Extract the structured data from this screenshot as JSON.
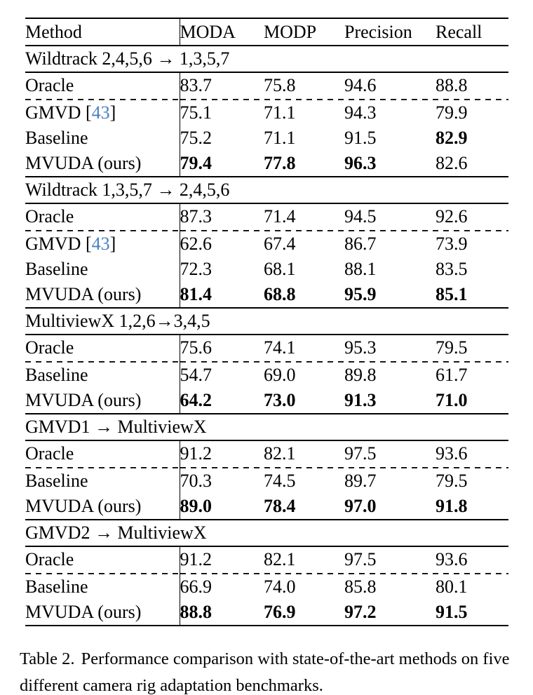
{
  "table": {
    "header": {
      "method": "Method",
      "metrics": [
        "MODA",
        "MODP",
        "Precision",
        "Recall"
      ]
    },
    "sections": [
      {
        "title": "Wildtrack 2,4,5,6 → 1,3,5,7",
        "rows": [
          {
            "method": "Oracle",
            "dashed_below": true,
            "values": [
              {
                "v": "83.7"
              },
              {
                "v": "75.8"
              },
              {
                "v": "94.6"
              },
              {
                "v": "88.8"
              }
            ]
          },
          {
            "method": "GMVD",
            "cite": "43",
            "values": [
              {
                "v": "75.1"
              },
              {
                "v": "71.1"
              },
              {
                "v": "94.3"
              },
              {
                "v": "79.9"
              }
            ]
          },
          {
            "method": "Baseline",
            "values": [
              {
                "v": "75.2"
              },
              {
                "v": "71.1"
              },
              {
                "v": "91.5"
              },
              {
                "v": "82.9",
                "bold": true
              }
            ]
          },
          {
            "method": "MVUDA (ours)",
            "values": [
              {
                "v": "79.4",
                "bold": true
              },
              {
                "v": "77.8",
                "bold": true
              },
              {
                "v": "96.3",
                "bold": true
              },
              {
                "v": "82.6"
              }
            ]
          }
        ]
      },
      {
        "title": "Wildtrack 1,3,5,7 → 2,4,5,6",
        "rows": [
          {
            "method": "Oracle",
            "dashed_below": true,
            "values": [
              {
                "v": "87.3"
              },
              {
                "v": "71.4"
              },
              {
                "v": "94.5"
              },
              {
                "v": "92.6"
              }
            ]
          },
          {
            "method": "GMVD",
            "cite": "43",
            "values": [
              {
                "v": "62.6"
              },
              {
                "v": "67.4"
              },
              {
                "v": "86.7"
              },
              {
                "v": "73.9"
              }
            ]
          },
          {
            "method": "Baseline",
            "values": [
              {
                "v": "72.3"
              },
              {
                "v": "68.1"
              },
              {
                "v": "88.1"
              },
              {
                "v": "83.5"
              }
            ]
          },
          {
            "method": "MVUDA (ours)",
            "values": [
              {
                "v": "81.4",
                "bold": true
              },
              {
                "v": "68.8",
                "bold": true
              },
              {
                "v": "95.9",
                "bold": true
              },
              {
                "v": "85.1",
                "bold": true
              }
            ]
          }
        ]
      },
      {
        "title": "MultiviewX 1,2,6→3,4,5",
        "rows": [
          {
            "method": "Oracle",
            "dashed_below": true,
            "values": [
              {
                "v": "75.6"
              },
              {
                "v": "74.1"
              },
              {
                "v": "95.3"
              },
              {
                "v": "79.5"
              }
            ]
          },
          {
            "method": "Baseline",
            "values": [
              {
                "v": "54.7"
              },
              {
                "v": "69.0"
              },
              {
                "v": "89.8"
              },
              {
                "v": "61.7"
              }
            ]
          },
          {
            "method": "MVUDA (ours)",
            "values": [
              {
                "v": "64.2",
                "bold": true
              },
              {
                "v": "73.0",
                "bold": true
              },
              {
                "v": "91.3",
                "bold": true
              },
              {
                "v": "71.0",
                "bold": true
              }
            ]
          }
        ]
      },
      {
        "title": "GMVD1 → MultiviewX",
        "rows": [
          {
            "method": "Oracle",
            "dashed_below": true,
            "values": [
              {
                "v": "91.2"
              },
              {
                "v": "82.1"
              },
              {
                "v": "97.5"
              },
              {
                "v": "93.6"
              }
            ]
          },
          {
            "method": "Baseline",
            "values": [
              {
                "v": "70.3"
              },
              {
                "v": "74.5"
              },
              {
                "v": "89.7"
              },
              {
                "v": "79.5"
              }
            ]
          },
          {
            "method": "MVUDA (ours)",
            "values": [
              {
                "v": "89.0",
                "bold": true
              },
              {
                "v": "78.4",
                "bold": true
              },
              {
                "v": "97.0",
                "bold": true
              },
              {
                "v": "91.8",
                "bold": true
              }
            ]
          }
        ]
      },
      {
        "title": "GMVD2 → MultiviewX",
        "rows": [
          {
            "method": "Oracle",
            "dashed_below": true,
            "values": [
              {
                "v": "91.2"
              },
              {
                "v": "82.1"
              },
              {
                "v": "97.5"
              },
              {
                "v": "93.6"
              }
            ]
          },
          {
            "method": "Baseline",
            "values": [
              {
                "v": "66.9"
              },
              {
                "v": "74.0"
              },
              {
                "v": "85.8"
              },
              {
                "v": "80.1"
              }
            ]
          },
          {
            "method": "MVUDA (ours)",
            "values": [
              {
                "v": "88.8",
                "bold": true
              },
              {
                "v": "76.9",
                "bold": true
              },
              {
                "v": "97.2",
                "bold": true
              },
              {
                "v": "91.5",
                "bold": true
              }
            ]
          }
        ]
      }
    ]
  },
  "caption": {
    "label": "Table 2.",
    "text": "Performance comparison with state-of-the-art methods on five different camera rig adaptation benchmarks."
  },
  "colors": {
    "citation": "#4a80be",
    "text": "#000000",
    "background": "#ffffff"
  }
}
